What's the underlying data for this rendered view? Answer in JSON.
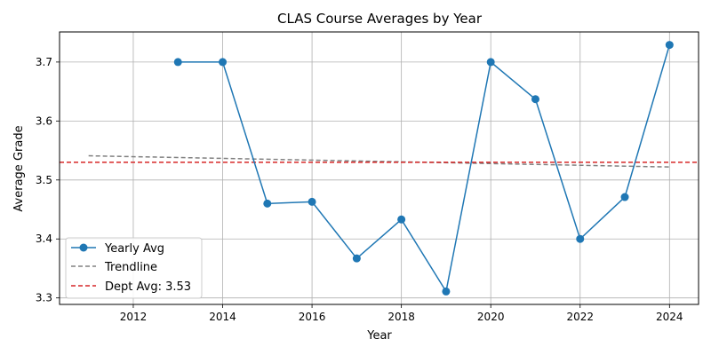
{
  "chart_data": {
    "type": "line",
    "title": "CLAS Course Averages by Year",
    "xlabel": "Year",
    "ylabel": "Average Grade",
    "xlim": [
      2010.35,
      2024.65
    ],
    "ylim": [
      3.289,
      3.751
    ],
    "xticks": [
      2012,
      2014,
      2016,
      2018,
      2020,
      2022,
      2024
    ],
    "yticks": [
      3.3,
      3.4,
      3.5,
      3.6,
      3.7
    ],
    "grid": true,
    "legend_position": "lower-left",
    "series": [
      {
        "name": "Yearly Avg",
        "style": "solid-with-markers",
        "color": "#1f77b4",
        "x": [
          2013,
          2014,
          2015,
          2016,
          2017,
          2018,
          2019,
          2020,
          2021,
          2022,
          2023,
          2024
        ],
        "y": [
          3.7,
          3.7,
          3.46,
          3.463,
          3.367,
          3.433,
          3.311,
          3.7,
          3.637,
          3.4,
          3.471,
          3.729
        ]
      },
      {
        "name": "Trendline",
        "style": "dashed",
        "color": "#808080",
        "x": [
          2011,
          2024
        ],
        "y": [
          3.541,
          3.522
        ]
      },
      {
        "name": "Dept Avg: 3.53",
        "style": "dashed-horizontal",
        "color": "#d62728",
        "y": 3.53
      }
    ]
  }
}
